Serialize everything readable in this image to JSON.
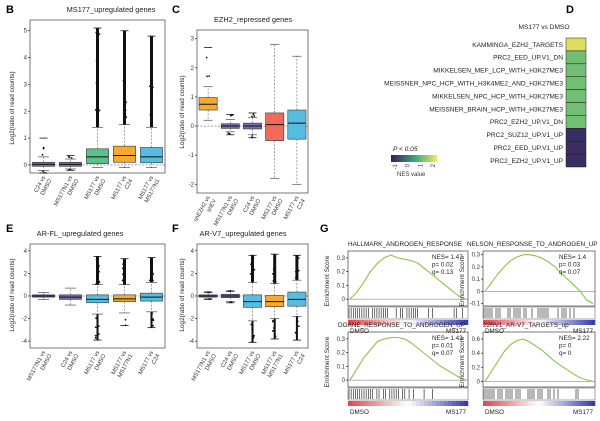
{
  "panels": {
    "B": {
      "letter": "B",
      "title": "MS177_upregulated genes",
      "ylabel": "Log2(ratio of read counts)",
      "yticks": [
        "0",
        "1",
        "2",
        "3",
        "4",
        "5"
      ],
      "cats": [
        [
          "C24 vs",
          "DMSO"
        ],
        [
          "MS177N1 vs",
          "DMSO"
        ],
        [
          "MS177 vs",
          "DMSO"
        ],
        [
          "MS177 vs",
          "C24"
        ],
        [
          "MS177 vs",
          "MS177N1"
        ]
      ]
    },
    "C": {
      "letter": "C",
      "title": "EZH2_repressed genes",
      "ylabel": "Log2(ratio of read counts)",
      "yticks": [
        "-2",
        "-1",
        "0",
        "1",
        "2",
        "3"
      ],
      "cats": [
        [
          "shEZH2 vs",
          "shEV"
        ],
        [
          "MS177N1 vs",
          "DMSO"
        ],
        [
          "C24 vs",
          "DMSO"
        ],
        [
          "MS177 vs",
          "DMSO"
        ],
        [
          "MS177 vs",
          "C24"
        ]
      ]
    },
    "D": {
      "letter": "D",
      "title": "MS177 vs DMSO",
      "rows": [
        "KAMMINGA_EZH2_TARGETS",
        "PRC2_EED_UP.V1_DN",
        "MIKKELSEN_MEF_LCP_WITH_H3K27ME3",
        "MEISSNER_NPC_HCP_WITH_H3K4ME2_AND_H3K27ME3",
        "MIKKELSEN_NPC_HCP_WITH_H3K27ME3",
        "MEISSNER_BRAIN_HCP_WITH_H3K27ME3",
        "PRC2_EZH2_UP.V1_DN",
        "PRC2_SUZ12_UP.V1_UP",
        "PRC2_EED_UP.V1_UP",
        "PRC2_EZH2_UP.V1_UP"
      ],
      "legend_title": "P < 0.05",
      "legend_label": "NES value",
      "legend_ticks": [
        "-1",
        "0",
        "1",
        "2"
      ]
    },
    "E": {
      "letter": "E",
      "title": "AR-FL_upregulated genes",
      "ylabel": "Log2(ratio of read counts)",
      "yticks": [
        "-4",
        "-2",
        "0",
        "2",
        "4"
      ],
      "cats": [
        [
          "MS177N1 vs",
          "DMSO"
        ],
        [
          "C24 vs",
          "DMSO"
        ],
        [
          "MS177 vs",
          "DMSO"
        ],
        [
          "MS177 vs",
          "MS177N1"
        ],
        [
          "MS177 vs",
          "C24"
        ]
      ]
    },
    "F": {
      "letter": "F",
      "title": "AR-V7_upregulated genes",
      "ylabel": "Log2(ratio of read counts)",
      "yticks": [
        "-4",
        "-2",
        "0",
        "2",
        "4"
      ],
      "cats": [
        [
          "MS177N1 vs",
          "DMSO"
        ],
        [
          "C24 vs",
          "DMSO"
        ],
        [
          "MS177 vs",
          "DMSO"
        ],
        [
          "MS177 vs",
          "MS177N1"
        ],
        [
          "MS177 vs",
          "C24"
        ]
      ]
    },
    "G": {
      "letter": "G",
      "ylabel": "Enrichment Score",
      "left_label": "DMSO",
      "right_label": "MS177",
      "plots": [
        {
          "title": "HALLMARK_ANDROGEN_RESPONSE",
          "stats": [
            "NES= 1.47",
            "p= 0.02",
            "q= 0.13"
          ],
          "yticks": [
            "0.3",
            "0.2",
            "0.1",
            "0"
          ]
        },
        {
          "title": "NELSON_RESPONSE_TO_ANDROGEN_UP",
          "stats": [
            "NES= 1.4",
            "p= 0.03",
            "q= 0.07"
          ],
          "yticks": [
            "0.3",
            "0.2",
            "0.1",
            "0",
            "-0.1"
          ]
        },
        {
          "title": "DOANE_RESPONSE_TO_ANDROGEN_UP",
          "stats": [
            "NES= 1.43",
            "p= 0.01",
            "q= 0.07"
          ],
          "yticks": [
            "0.3",
            "0.2",
            "0.1",
            "0"
          ]
        },
        {
          "title": "22RV1_AR-V7_TARGETS_up",
          "stats": [
            "NES= 2.22",
            "p= 0",
            "q= 0"
          ],
          "yticks": [
            "0.6",
            "0.4",
            "0.2",
            "0"
          ]
        }
      ]
    }
  },
  "colors": {
    "orange": "#F4A933",
    "purple": "#7B6BB2",
    "red": "#F26A5B",
    "green": "#5CC08A",
    "cyan": "#57BDE0",
    "gsea_line": "#8BC34A",
    "nes_high": "#F2E35A",
    "nes_mid": "#3CAE7D",
    "nes_low": "#3B1F5E"
  },
  "chart_data": [
    {
      "panel": "B",
      "type": "box",
      "title": "MS177_upregulated genes",
      "ylabel": "Log2(ratio of read counts)",
      "ylim": [
        -0.3,
        5.4
      ],
      "series": [
        {
          "name": "C24 vs DMSO",
          "q1": -0.05,
          "median": 0.02,
          "q3": 0.1,
          "wlo": -0.2,
          "whi": 0.3,
          "out_lo": -0.3,
          "out_hi": 1.0,
          "color": "#7B6BB2"
        },
        {
          "name": "MS177N1 vs DMSO",
          "q1": -0.05,
          "median": 0.02,
          "q3": 0.1,
          "wlo": -0.15,
          "whi": 0.22,
          "out_lo": -0.2,
          "out_hi": 0.35,
          "color": "#7B6BB2"
        },
        {
          "name": "MS177 vs DMSO",
          "q1": 0.05,
          "median": 0.3,
          "q3": 0.6,
          "wlo": -0.1,
          "whi": 1.4,
          "out_lo": -0.1,
          "out_hi": 5.1,
          "color": "#5CC08A"
        },
        {
          "name": "MS177 vs C24",
          "q1": 0.1,
          "median": 0.35,
          "q3": 0.7,
          "wlo": -0.1,
          "whi": 1.5,
          "out_lo": -0.1,
          "out_hi": 5.0,
          "color": "#F4A933"
        },
        {
          "name": "MS177 vs MS177N1",
          "q1": 0.08,
          "median": 0.3,
          "q3": 0.65,
          "wlo": -0.1,
          "whi": 1.4,
          "out_lo": -0.1,
          "out_hi": 4.8,
          "color": "#57BDE0"
        }
      ]
    },
    {
      "panel": "C",
      "type": "box",
      "title": "EZH2_repressed genes",
      "ylabel": "Log2(ratio of read counts)",
      "ylim": [
        -2.3,
        3.3
      ],
      "series": [
        {
          "name": "shEZH2 vs shEV",
          "q1": 0.55,
          "median": 0.75,
          "q3": 0.98,
          "wlo": 0.2,
          "whi": 1.35,
          "out_lo": 0.2,
          "out_hi": 2.7,
          "color": "#F4A933"
        },
        {
          "name": "MS177N1 vs DMSO",
          "q1": -0.08,
          "median": 0.0,
          "q3": 0.08,
          "wlo": -0.2,
          "whi": 0.22,
          "out_lo": -0.3,
          "out_hi": 0.4,
          "color": "#7B6BB2"
        },
        {
          "name": "C24 vs DMSO",
          "q1": -0.1,
          "median": 0.0,
          "q3": 0.1,
          "wlo": -0.3,
          "whi": 0.3,
          "out_lo": -0.4,
          "out_hi": 0.45,
          "color": "#7B6BB2"
        },
        {
          "name": "MS177 vs DMSO",
          "q1": -0.5,
          "median": 0.05,
          "q3": 0.45,
          "wlo": -1.8,
          "whi": 2.8,
          "out_lo": -1.8,
          "out_hi": 2.8,
          "color": "#F26A5B"
        },
        {
          "name": "MS177 vs C24",
          "q1": -0.45,
          "median": 0.1,
          "q3": 0.55,
          "wlo": -2.0,
          "whi": 2.4,
          "out_lo": -2.0,
          "out_hi": 2.4,
          "color": "#57BDE0"
        }
      ]
    },
    {
      "panel": "D",
      "type": "heatmap",
      "title": "MS177 vs DMSO",
      "legend": "NES value",
      "rows": [
        "KAMMINGA_EZH2_TARGETS",
        "PRC2_EED_UP.V1_DN",
        "MIKKELSEN_MEF_LCP_WITH_H3K27ME3",
        "MEISSNER_NPC_HCP_WITH_H3K4ME2_AND_H3K27ME3",
        "MIKKELSEN_NPC_HCP_WITH_H3K27ME3",
        "MEISSNER_BRAIN_HCP_WITH_H3K27ME3",
        "PRC2_EZH2_UP.V1_DN",
        "PRC2_SUZ12_UP.V1_UP",
        "PRC2_EED_UP.V1_UP",
        "PRC2_EZH2_UP.V1_UP"
      ],
      "values": [
        2.2,
        1.2,
        1.2,
        1.2,
        1.2,
        1.2,
        1.2,
        -1.2,
        -1.2,
        -1.2
      ],
      "range": [
        -1.4,
        2.4
      ]
    },
    {
      "panel": "E",
      "type": "box",
      "title": "AR-FL_upregulated genes",
      "ylabel": "Log2(ratio of read counts)",
      "ylim": [
        -4.6,
        4.6
      ],
      "series": [
        {
          "name": "MS177N1 vs DMSO",
          "q1": -0.1,
          "median": 0.0,
          "q3": 0.1,
          "wlo": -0.3,
          "whi": 0.3,
          "out_lo": -0.3,
          "out_hi": 0.3,
          "color": "#7B6BB2"
        },
        {
          "name": "C24 vs DMSO",
          "q1": -0.3,
          "median": -0.1,
          "q3": 0.1,
          "wlo": -0.8,
          "whi": 0.7,
          "out_lo": -0.8,
          "out_hi": 0.7,
          "color": "#7B6BB2"
        },
        {
          "name": "MS177 vs DMSO",
          "q1": -0.6,
          "median": -0.3,
          "q3": 0.1,
          "wlo": -1.6,
          "whi": 1.0,
          "out_lo": -3.9,
          "out_hi": 3.5,
          "color": "#57BDE0"
        },
        {
          "name": "MS177 vs MS177N1",
          "q1": -0.5,
          "median": -0.25,
          "q3": 0.1,
          "wlo": -1.5,
          "whi": 1.0,
          "out_lo": -2.6,
          "out_hi": 3.3,
          "color": "#F4A933"
        },
        {
          "name": "MS177 vs C24",
          "q1": -0.45,
          "median": -0.1,
          "q3": 0.25,
          "wlo": -1.4,
          "whi": 1.2,
          "out_lo": -2.8,
          "out_hi": 3.4,
          "color": "#57BDE0"
        }
      ]
    },
    {
      "panel": "F",
      "type": "box",
      "title": "AR-V7_upregulated genes",
      "ylabel": "Log2(ratio of read counts)",
      "ylim": [
        -4.6,
        4.6
      ],
      "series": [
        {
          "name": "MS177N1 vs DMSO",
          "q1": -0.1,
          "median": 0.0,
          "q3": 0.1,
          "wlo": -0.25,
          "whi": 0.3,
          "out_lo": -0.3,
          "out_hi": 0.35,
          "color": "#7B6BB2"
        },
        {
          "name": "C24 vs DMSO",
          "q1": -0.15,
          "median": 0.0,
          "q3": 0.15,
          "wlo": -0.5,
          "whi": 0.4,
          "out_lo": -0.6,
          "out_hi": 0.45,
          "color": "#7B6BB2"
        },
        {
          "name": "MS177 vs DMSO",
          "q1": -1.0,
          "median": -0.5,
          "q3": 0.1,
          "wlo": -2.2,
          "whi": 1.2,
          "out_lo": -4.1,
          "out_hi": 3.6,
          "color": "#57BDE0"
        },
        {
          "name": "MS177 vs MS177N1",
          "q1": -0.95,
          "median": -0.5,
          "q3": 0.05,
          "wlo": -2.0,
          "whi": 1.1,
          "out_lo": -3.8,
          "out_hi": 3.7,
          "color": "#F4A933"
        },
        {
          "name": "MS177 vs C24",
          "q1": -0.9,
          "median": -0.3,
          "q3": 0.35,
          "wlo": -1.8,
          "whi": 1.4,
          "out_lo": -3.9,
          "out_hi": 3.6,
          "color": "#57BDE0"
        }
      ]
    },
    {
      "panel": "G",
      "type": "line",
      "title": "GSEA enrichment plots",
      "series": [
        {
          "name": "HALLMARK_ANDROGEN_RESPONSE",
          "ylim": [
            -0.05,
            0.35
          ],
          "y": [
            0,
            0.05,
            0.12,
            0.2,
            0.26,
            0.3,
            0.32,
            0.3,
            0.29,
            0.28,
            0.26,
            0.22,
            0.18,
            0.14,
            0.1,
            0.06,
            0.02,
            0
          ]
        },
        {
          "name": "NELSON_RESPONSE_TO_ANDROGEN_UP",
          "ylim": [
            -0.12,
            0.33
          ],
          "y": [
            0,
            0.07,
            0.14,
            0.2,
            0.25,
            0.28,
            0.3,
            0.3,
            0.29,
            0.27,
            0.24,
            0.2,
            0.15,
            0.1,
            0.05,
            0.0,
            -0.07,
            -0.1
          ]
        },
        {
          "name": "DOANE_RESPONSE_TO_ANDROGEN_UP",
          "ylim": [
            -0.05,
            0.35
          ],
          "y": [
            0,
            0.08,
            0.16,
            0.22,
            0.28,
            0.3,
            0.31,
            0.31,
            0.3,
            0.27,
            0.23,
            0.19,
            0.15,
            0.11,
            0.08,
            0.05,
            0.02,
            0
          ]
        },
        {
          "name": "22RV1_AR-V7_TARGETS_up",
          "ylim": [
            -0.08,
            0.7
          ],
          "y": [
            0,
            0.14,
            0.28,
            0.42,
            0.52,
            0.58,
            0.6,
            0.56,
            0.5,
            0.44,
            0.36,
            0.28,
            0.22,
            0.16,
            0.1,
            0.05,
            0.02,
            0
          ]
        }
      ]
    }
  ]
}
